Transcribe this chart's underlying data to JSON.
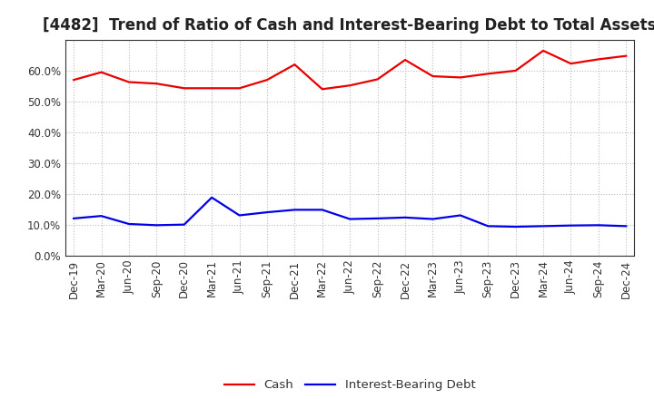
{
  "title": "[4482]  Trend of Ratio of Cash and Interest-Bearing Debt to Total Assets",
  "x_labels": [
    "Dec-19",
    "Mar-20",
    "Jun-20",
    "Sep-20",
    "Dec-20",
    "Mar-21",
    "Jun-21",
    "Sep-21",
    "Dec-21",
    "Mar-22",
    "Jun-22",
    "Sep-22",
    "Dec-22",
    "Mar-23",
    "Jun-23",
    "Sep-23",
    "Dec-23",
    "Mar-24",
    "Jun-24",
    "Sep-24",
    "Dec-24"
  ],
  "cash": [
    0.57,
    0.595,
    0.563,
    0.558,
    0.543,
    0.543,
    0.543,
    0.57,
    0.62,
    0.54,
    0.552,
    0.572,
    0.635,
    0.582,
    0.578,
    0.59,
    0.6,
    0.665,
    0.623,
    0.637,
    0.648
  ],
  "debt": [
    0.12,
    0.128,
    0.102,
    0.098,
    0.1,
    0.188,
    0.13,
    0.14,
    0.148,
    0.148,
    0.118,
    0.12,
    0.123,
    0.118,
    0.13,
    0.095,
    0.093,
    0.095,
    0.097,
    0.098,
    0.095
  ],
  "cash_color": "#e80000",
  "debt_color": "#0000e8",
  "background_color": "#ffffff",
  "plot_bg_color": "#ffffff",
  "grid_color": "#bbbbbb",
  "ylim": [
    0.0,
    0.7
  ],
  "yticks": [
    0.0,
    0.1,
    0.2,
    0.3,
    0.4,
    0.5,
    0.6
  ],
  "legend_cash": "Cash",
  "legend_debt": "Interest-Bearing Debt",
  "title_fontsize": 12,
  "tick_fontsize": 8.5,
  "legend_fontsize": 9.5,
  "line_width": 1.6
}
